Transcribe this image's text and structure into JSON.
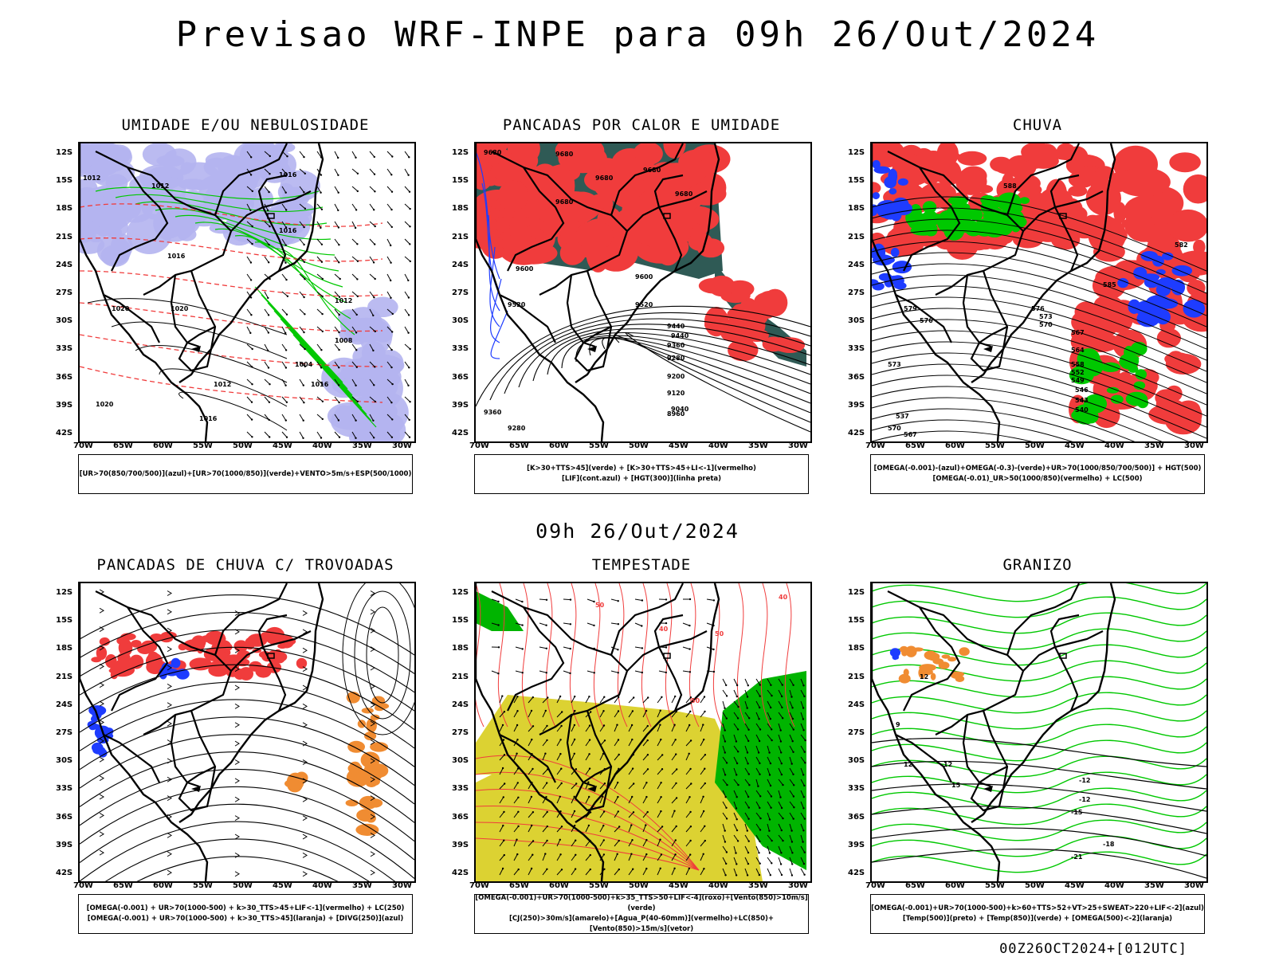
{
  "title": "Previsao WRF-INPE  para 09h 26/Out/2024",
  "mid_time": "09h 26/Out/2024",
  "footer": "00Z26OCT2024+[012UTC]",
  "lat_labels": [
    "12S",
    "15S",
    "18S",
    "21S",
    "24S",
    "27S",
    "30S",
    "33S",
    "36S",
    "39S",
    "42S"
  ],
  "lon_labels": [
    "70W",
    "65W",
    "60W",
    "55W",
    "50W",
    "45W",
    "40W",
    "35W",
    "30W"
  ],
  "colors": {
    "lavender": "#b4b4f0",
    "green": "#00c800",
    "red": "#f03c3c",
    "blue": "#1e3cff",
    "teal": "#2f5a55",
    "yellow": "#dcd232",
    "orange": "#f08c32",
    "bright_green": "#00b400"
  },
  "panels": [
    {
      "title": "UMIDADE E/OU NEBULOSIDADE",
      "legend": [
        "[UR>70(850/700/500)](azul)+[UR>70(1000/850)](verde)+VENTO>5m/s+ESP(500/1000)"
      ],
      "contour_labels": [
        "1012",
        "1012",
        "1016",
        "1016",
        "1016",
        "1020",
        "1020",
        "1012",
        "1008",
        "1004",
        "1016",
        "1012",
        "1020",
        "1016"
      ]
    },
    {
      "title": "PANCADAS POR CALOR E UMIDADE",
      "legend": [
        "[K>30+TTS>45](verde) + [K>30+TTS>45+LI<-1](vermelho)",
        "[LIF](cont.azul) + [HGT(300)](linha preta)"
      ],
      "contour_labels": [
        "9680",
        "9680",
        "9680",
        "9680",
        "9680",
        "9680",
        "9600",
        "9600",
        "9520",
        "9520",
        "9440",
        "9440",
        "9360",
        "9280",
        "9200",
        "9120",
        "9040",
        "8960",
        "9360",
        "9280"
      ]
    },
    {
      "title": "CHUVA",
      "legend": [
        "[OMEGA(-0.001)-(azul)+OMEGA(-0.3)-(verde)+UR>70(1000/850/700/500)] + HGT(500)",
        "[OMEGA(-0.01)_UR>50(1000/850)(vermelho) + LC(500)"
      ],
      "contour_labels": [
        "588",
        "585",
        "582",
        "579",
        "576",
        "573",
        "570",
        "567",
        "564",
        "558",
        "552",
        "549",
        "546",
        "543",
        "540",
        "537",
        "576",
        "573",
        "570",
        "567"
      ]
    },
    {
      "title": "PANCADAS DE CHUVA C/ TROVOADAS",
      "legend": [
        "[OMEGA(-0.001) + UR>70(1000-500) + k>30_TTS>45+LIF<-1](vermelho) + LC(250)",
        "[OMEGA(-0.001) + UR>70(1000-500) + k>30_TTS>45](laranja) + [DIVG(250)](azul)"
      ],
      "contour_labels": []
    },
    {
      "title": "TEMPESTADE",
      "legend": [
        "[OMEGA(-0.001)+UR>70(1000-500)+k>35_TTS>50+LIF<-4](roxo)+[Vento(850)>10m/s](verde)",
        "[CJ(250)>30m/s](amarelo)+[Agua_P(40-60mm)](vermelho)+LC(850)+[Vento(850)>15m/s](vetor)"
      ],
      "contour_labels": [
        "50",
        "40",
        "50",
        "40",
        "50"
      ]
    },
    {
      "title": "GRANIZO",
      "legend": [
        "[OMEGA(-0.001)+UR>70(1000-500)+k>60+TTS>52+VT>25+SWEAT>220+LIF<-2](azul)",
        "[Temp(500)](preto) + [Temp(850)](verde) + [OMEGA(500)<-2](laranja)"
      ],
      "contour_labels": [
        "12",
        "12",
        "15",
        "-12",
        "-12",
        "-15",
        "-18",
        "-21",
        "12",
        "9"
      ]
    }
  ]
}
